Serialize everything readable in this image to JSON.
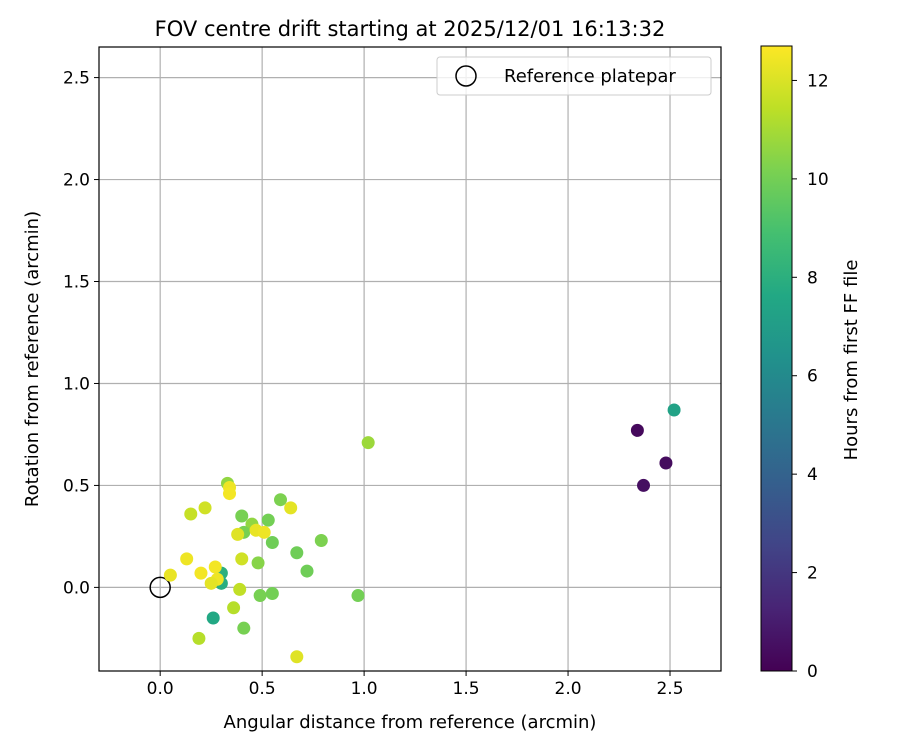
{
  "chart_data": {
    "type": "scatter",
    "title": "FOV centre drift starting at 2025/12/01 16:13:32",
    "xlabel": "Angular distance from reference (arcmin)",
    "ylabel": "Rotation from reference (arcmin)",
    "xlim": [
      -0.3,
      2.75
    ],
    "ylim": [
      -0.41,
      2.65
    ],
    "xticks": [
      0.0,
      0.5,
      1.0,
      1.5,
      2.0,
      2.5
    ],
    "yticks": [
      0.0,
      0.5,
      1.0,
      1.5,
      2.0,
      2.5
    ],
    "xtick_labels": [
      "0.0",
      "0.5",
      "1.0",
      "1.5",
      "2.0",
      "2.5"
    ],
    "ytick_labels": [
      "0.0",
      "0.5",
      "1.0",
      "1.5",
      "2.0",
      "2.5"
    ],
    "grid": true,
    "legend": {
      "position": "top-right",
      "entries": [
        "Reference platepar"
      ]
    },
    "reference_point": {
      "x": 0.0,
      "y": 0.0,
      "label": "Reference platepar"
    },
    "colorbar": {
      "label": "Hours from first FF file",
      "range": [
        0,
        12.7
      ],
      "ticks": [
        0,
        2,
        4,
        6,
        8,
        10,
        12
      ],
      "tick_labels": [
        "0",
        "2",
        "4",
        "6",
        "8",
        "10",
        "12"
      ],
      "colormap": "viridis"
    },
    "points": [
      {
        "x": 2.34,
        "y": 0.77,
        "hours": 0.3
      },
      {
        "x": 2.48,
        "y": 0.61,
        "hours": 0.4
      },
      {
        "x": 2.37,
        "y": 0.5,
        "hours": 0.5
      },
      {
        "x": 2.52,
        "y": 0.87,
        "hours": 7.3
      },
      {
        "x": 1.02,
        "y": 0.71,
        "hours": 10.8
      },
      {
        "x": 0.33,
        "y": 0.51,
        "hours": 10.6
      },
      {
        "x": 0.59,
        "y": 0.43,
        "hours": 10.2
      },
      {
        "x": 0.4,
        "y": 0.35,
        "hours": 10.1
      },
      {
        "x": 0.53,
        "y": 0.33,
        "hours": 10.0
      },
      {
        "x": 0.45,
        "y": 0.31,
        "hours": 10.6
      },
      {
        "x": 0.41,
        "y": 0.27,
        "hours": 10.1
      },
      {
        "x": 0.55,
        "y": 0.22,
        "hours": 9.9
      },
      {
        "x": 0.79,
        "y": 0.23,
        "hours": 10.2
      },
      {
        "x": 0.67,
        "y": 0.17,
        "hours": 9.9
      },
      {
        "x": 0.48,
        "y": 0.12,
        "hours": 10.4
      },
      {
        "x": 0.72,
        "y": 0.08,
        "hours": 9.9
      },
      {
        "x": 0.3,
        "y": 0.07,
        "hours": 8.0
      },
      {
        "x": 0.3,
        "y": 0.02,
        "hours": 7.9
      },
      {
        "x": 0.49,
        "y": -0.04,
        "hours": 10.1
      },
      {
        "x": 0.55,
        "y": -0.03,
        "hours": 10.0
      },
      {
        "x": 0.97,
        "y": -0.04,
        "hours": 10.0
      },
      {
        "x": 0.26,
        "y": -0.15,
        "hours": 7.6
      },
      {
        "x": 0.41,
        "y": -0.2,
        "hours": 10.1
      },
      {
        "x": 0.34,
        "y": 0.49,
        "hours": 12.4
      },
      {
        "x": 0.34,
        "y": 0.46,
        "hours": 12.5
      },
      {
        "x": 0.64,
        "y": 0.39,
        "hours": 12.2
      },
      {
        "x": 0.22,
        "y": 0.39,
        "hours": 11.8
      },
      {
        "x": 0.15,
        "y": 0.36,
        "hours": 11.6
      },
      {
        "x": 0.47,
        "y": 0.28,
        "hours": 12.3
      },
      {
        "x": 0.51,
        "y": 0.27,
        "hours": 12.4
      },
      {
        "x": 0.38,
        "y": 0.26,
        "hours": 12.1
      },
      {
        "x": 0.13,
        "y": 0.14,
        "hours": 12.4
      },
      {
        "x": 0.4,
        "y": 0.14,
        "hours": 11.8
      },
      {
        "x": 0.27,
        "y": 0.1,
        "hours": 12.5
      },
      {
        "x": 0.05,
        "y": 0.06,
        "hours": 12.3
      },
      {
        "x": 0.2,
        "y": 0.07,
        "hours": 12.5
      },
      {
        "x": 0.28,
        "y": 0.04,
        "hours": 12.4
      },
      {
        "x": 0.25,
        "y": 0.02,
        "hours": 12.2
      },
      {
        "x": 0.39,
        "y": -0.01,
        "hours": 11.5
      },
      {
        "x": 0.36,
        "y": -0.1,
        "hours": 11.3
      },
      {
        "x": 0.19,
        "y": -0.25,
        "hours": 11.3
      },
      {
        "x": 0.67,
        "y": -0.34,
        "hours": 12.1
      }
    ]
  }
}
